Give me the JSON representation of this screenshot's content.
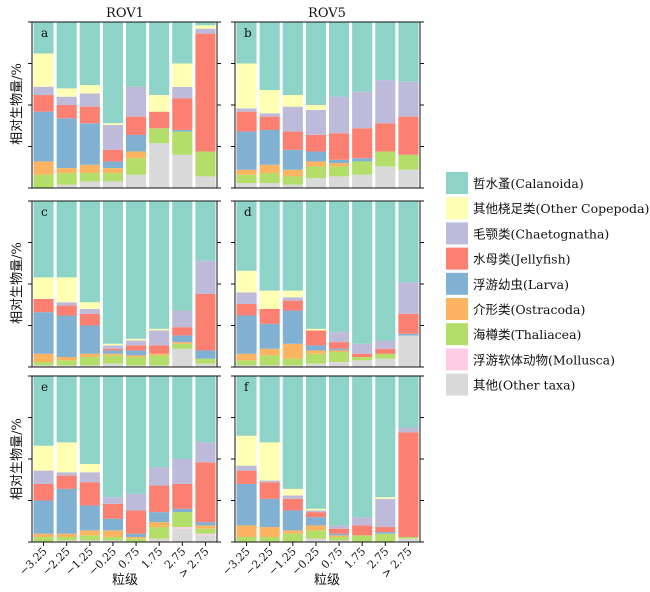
{
  "chart_data": {
    "type": "bar",
    "stacked": "percent",
    "column_titles": [
      "ROV1",
      "ROV5"
    ],
    "ylabel": "相对生物量/%",
    "xlabel": "粒级",
    "categories": [
      "−3.25",
      "−2.25",
      "−1.25",
      "−0.25",
      "0.75",
      "1.75",
      "2.75",
      "> 2.75"
    ],
    "ylim": [
      0,
      100
    ],
    "legend_position": "right",
    "series": [
      {
        "name": "其他(Other taxa)",
        "color": "#d9d9d9"
      },
      {
        "name": "浮游软体动物(Mollusca)",
        "color": "#fccde5"
      },
      {
        "name": "海樽类(Thaliacea)",
        "color": "#b3de69"
      },
      {
        "name": "介形类(Ostracoda)",
        "color": "#fdb462"
      },
      {
        "name": "浮游幼虫(Larva)",
        "color": "#80b1d3"
      },
      {
        "name": "水母类(Jellyfish)",
        "color": "#fb8072"
      },
      {
        "name": "毛颚类(Chaetognatha)",
        "color": "#bebada"
      },
      {
        "name": "其他桡足类(Other Copepoda)",
        "color": "#ffffb3"
      },
      {
        "name": "哲水蚤(Calanoida)",
        "color": "#8dd3c7"
      }
    ],
    "legend_order": [
      "哲水蚤(Calanoida)",
      "其他桡足类(Other Copepoda)",
      "毛颚类(Chaetognatha)",
      "水母类(Jellyfish)",
      "浮游幼虫(Larva)",
      "介形类(Ostracoda)",
      "海樽类(Thaliacea)",
      "浮游软体动物(Mollusca)",
      "其他(Other taxa)"
    ],
    "panels": [
      {
        "label": "a",
        "station": "ROV1",
        "bars": [
          [
            0,
            0,
            8,
            8,
            30,
            10,
            5,
            20,
            19
          ],
          [
            2,
            0,
            7,
            3,
            30,
            8,
            5,
            5,
            40
          ],
          [
            4,
            0,
            5,
            5,
            25,
            10,
            8,
            5,
            38
          ],
          [
            4,
            0,
            5,
            3,
            4,
            7,
            15,
            1,
            61
          ],
          [
            8,
            0,
            10,
            4,
            10,
            11,
            18,
            0,
            39
          ],
          [
            27,
            0,
            9,
            0,
            0,
            10,
            0,
            10,
            44
          ],
          [
            20,
            0,
            14,
            0,
            1,
            19,
            7,
            14,
            25
          ],
          [
            7,
            0,
            15,
            0,
            0,
            71,
            3,
            2,
            2
          ]
        ]
      },
      {
        "label": "b",
        "station": "ROV5",
        "bars": [
          [
            3,
            0,
            5,
            3,
            23,
            12,
            2,
            27,
            25
          ],
          [
            3,
            0,
            6,
            5,
            21,
            8,
            2,
            14,
            41
          ],
          [
            2,
            0,
            5,
            4,
            12,
            11,
            15,
            7,
            44
          ],
          [
            6,
            0,
            7,
            3,
            6,
            10,
            15,
            3,
            50
          ],
          [
            7,
            0,
            6,
            2,
            2,
            16,
            22,
            0,
            45
          ],
          [
            8,
            0,
            8,
            0,
            2,
            18,
            22,
            0,
            42
          ],
          [
            13,
            0,
            9,
            0,
            0,
            17,
            26,
            0,
            35
          ],
          [
            11,
            0,
            9,
            0,
            0,
            23,
            21,
            0,
            36
          ]
        ]
      },
      {
        "label": "c",
        "station": "ROV1",
        "bars": [
          [
            1,
            0,
            2,
            5,
            25,
            8,
            0,
            13,
            46
          ],
          [
            1,
            0,
            3,
            2,
            25,
            6,
            2,
            15,
            46
          ],
          [
            1,
            0,
            5,
            2,
            17,
            7,
            3,
            4,
            61
          ],
          [
            2,
            0,
            5,
            1,
            2,
            1,
            2,
            1,
            86
          ],
          [
            1,
            0,
            5,
            1,
            3,
            3,
            3,
            1,
            83
          ],
          [
            1,
            0,
            6,
            1,
            0,
            5,
            9,
            1,
            77
          ],
          [
            11,
            0,
            3,
            1,
            4,
            5,
            10,
            0,
            66
          ],
          [
            2,
            0,
            3,
            0,
            5,
            34,
            20,
            0,
            36
          ]
        ]
      },
      {
        "label": "d",
        "station": "ROV5",
        "bars": [
          [
            1,
            0,
            3,
            4,
            23,
            7,
            7,
            13,
            42
          ],
          [
            1,
            0,
            6,
            4,
            15,
            9,
            0,
            11,
            54
          ],
          [
            1,
            0,
            4,
            9,
            20,
            6,
            2,
            4,
            54
          ],
          [
            2,
            0,
            6,
            2,
            3,
            9,
            0,
            1,
            77
          ],
          [
            3,
            0,
            6,
            1,
            1,
            4,
            6,
            0,
            79
          ],
          [
            4,
            0,
            2,
            0,
            0,
            2,
            6,
            0,
            86
          ],
          [
            5,
            0,
            3,
            0,
            0,
            3,
            5,
            0,
            84
          ],
          [
            19,
            0,
            0,
            0,
            1,
            12,
            19,
            0,
            49
          ]
        ]
      },
      {
        "label": "e",
        "station": "ROV1",
        "bars": [
          [
            0,
            0,
            3,
            2,
            20,
            10,
            8,
            15,
            42
          ],
          [
            1,
            0,
            2,
            2,
            27,
            8,
            2,
            18,
            40
          ],
          [
            1,
            0,
            3,
            3,
            15,
            14,
            6,
            5,
            53
          ],
          [
            1,
            0,
            2,
            4,
            7,
            9,
            4,
            0,
            73
          ],
          [
            0,
            0,
            2,
            1,
            2,
            14,
            10,
            0,
            71
          ],
          [
            2,
            0,
            7,
            3,
            6,
            16,
            11,
            0,
            55
          ],
          [
            8,
            1,
            9,
            0,
            2,
            15,
            15,
            0,
            50
          ],
          [
            4,
            1,
            3,
            2,
            2,
            36,
            12,
            0,
            40
          ]
        ]
      },
      {
        "label": "f",
        "station": "ROV5",
        "bars": [
          [
            0,
            0,
            3,
            7,
            25,
            8,
            3,
            18,
            36
          ],
          [
            0,
            0,
            3,
            6,
            17,
            10,
            1,
            23,
            40
          ],
          [
            0,
            0,
            5,
            2,
            12,
            7,
            2,
            4,
            68
          ],
          [
            2,
            0,
            5,
            3,
            5,
            3,
            1,
            1,
            80
          ],
          [
            1,
            0,
            2,
            1,
            1,
            3,
            2,
            0,
            90
          ],
          [
            0,
            0,
            4,
            0,
            0,
            6,
            5,
            0,
            85
          ],
          [
            0,
            0,
            5,
            0,
            1,
            3,
            17,
            1,
            73
          ],
          [
            2,
            0,
            1,
            0,
            0,
            63,
            3,
            0,
            31
          ]
        ]
      }
    ]
  }
}
